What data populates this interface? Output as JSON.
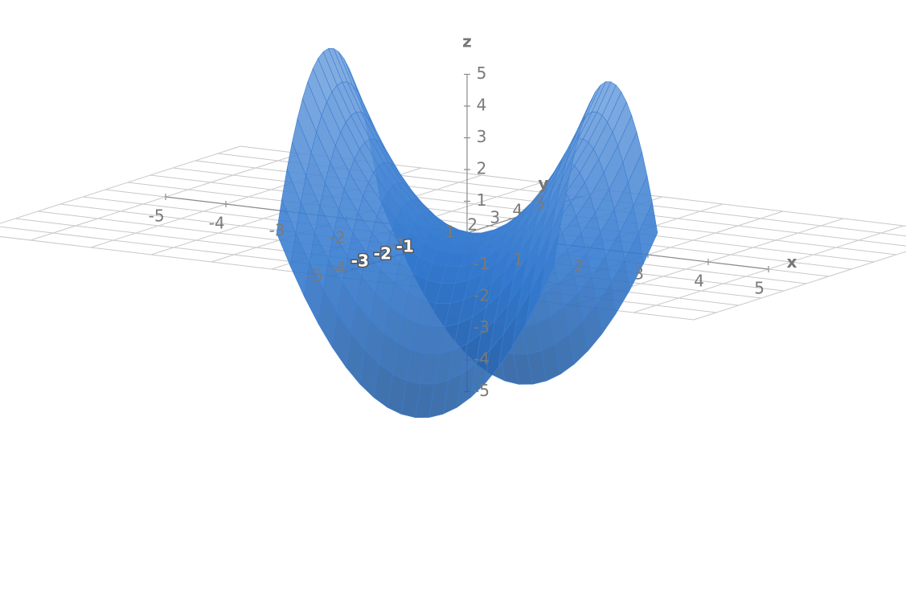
{
  "chart_data": {
    "type": "surface",
    "xlabel": "x",
    "ylabel": "y",
    "zlabel": "z",
    "xlim": [
      -5,
      5
    ],
    "ylim": [
      -5,
      5
    ],
    "zlim": [
      -5,
      5
    ],
    "x_ticks": [
      "-5",
      "-4",
      "-3",
      "-2",
      "-1",
      "1",
      "2",
      "3",
      "4",
      "5"
    ],
    "y_ticks": [
      "-5",
      "-4",
      "-3",
      "-2",
      "-1",
      "1",
      "2",
      "3",
      "4",
      "5"
    ],
    "z_ticks": [
      "-5",
      "-4",
      "-3",
      "-2",
      "-1",
      "1",
      "2",
      "3",
      "4",
      "5"
    ],
    "surface": {
      "function": "z = x^2 - y^2",
      "x_domain": [
        -2.3,
        2.3
      ],
      "y_domain": [
        -2.3,
        2.3
      ],
      "color": "#4a90e2",
      "grid_color": "#3a78c4"
    },
    "grid": true
  }
}
